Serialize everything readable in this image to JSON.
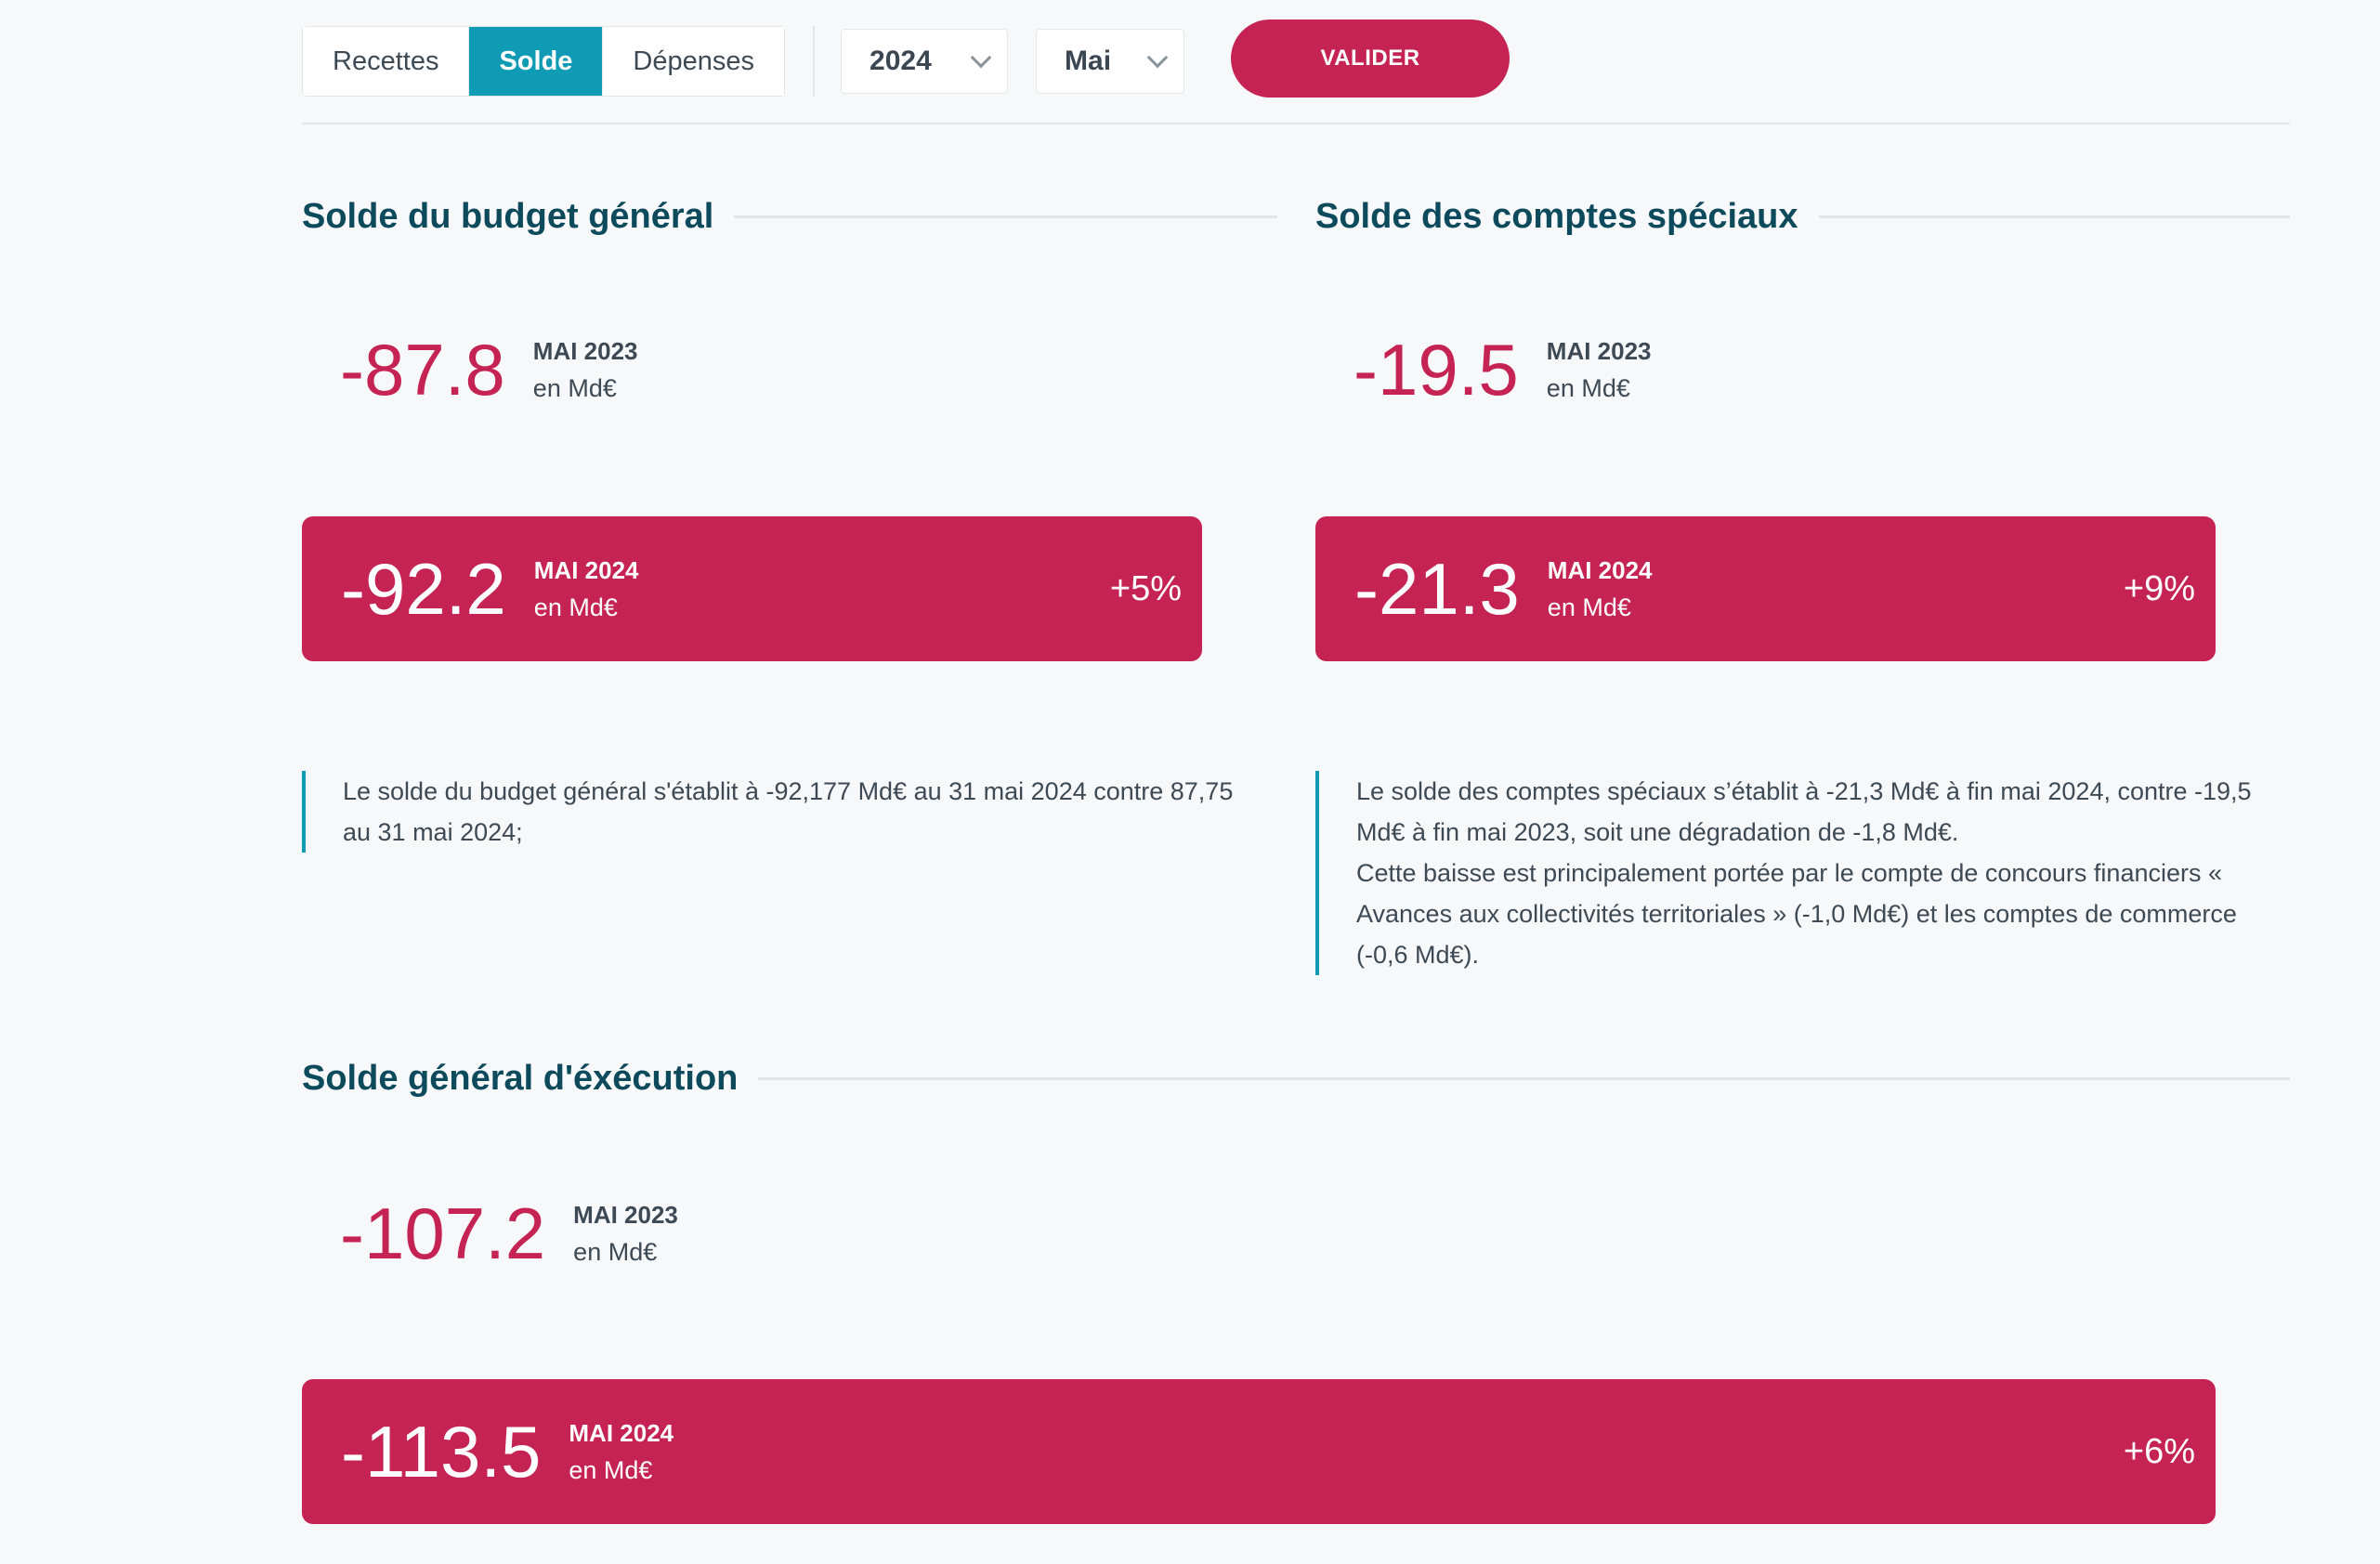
{
  "toolbar": {
    "tabs": [
      {
        "label": "Recettes",
        "active": false
      },
      {
        "label": "Solde",
        "active": true
      },
      {
        "label": "Dépenses",
        "active": false
      }
    ],
    "year_value": "2024",
    "month_value": "Mai",
    "validate_label": "VALIDER"
  },
  "budget_general": {
    "title": "Solde du budget général",
    "prev_value": "-87.8",
    "prev_period": "MAI 2023",
    "unit": "en Md€",
    "curr_value": "-92.2",
    "curr_period": "MAI 2024",
    "change": "+5%",
    "note": "Le solde du budget général s'établit à -92,177 Md€ au 31 mai 2024 contre 87,75 au 31 mai 2024;"
  },
  "comptes_speciaux": {
    "title": "Solde des comptes spéciaux",
    "prev_value": "-19.5",
    "prev_period": "MAI 2023",
    "unit": "en Md€",
    "curr_value": "-21.3",
    "curr_period": "MAI 2024",
    "change": "+9%",
    "note_line1": "Le solde des comptes spéciaux s’établit à -21,3 Md€ à fin mai 2024, contre -19,5 Md€ à fin mai 2023, soit une dégradation de -1,8 Md€.",
    "note_line2": "Cette baisse est principalement portée par le compte de concours financiers « Avances aux collectivités territoriales » (-1,0 Md€) et les comptes de commerce (-0,6 Md€)."
  },
  "execution": {
    "title": "Solde général d'éxécution",
    "prev_value": "-107.2",
    "prev_period": "MAI 2023",
    "unit": "en Md€",
    "curr_value": "-113.5",
    "curr_period": "MAI 2024",
    "change": "+6%"
  },
  "colors": {
    "accent": "#c42353",
    "active_tab": "#0e9bb3",
    "title": "#0d4a5c"
  }
}
